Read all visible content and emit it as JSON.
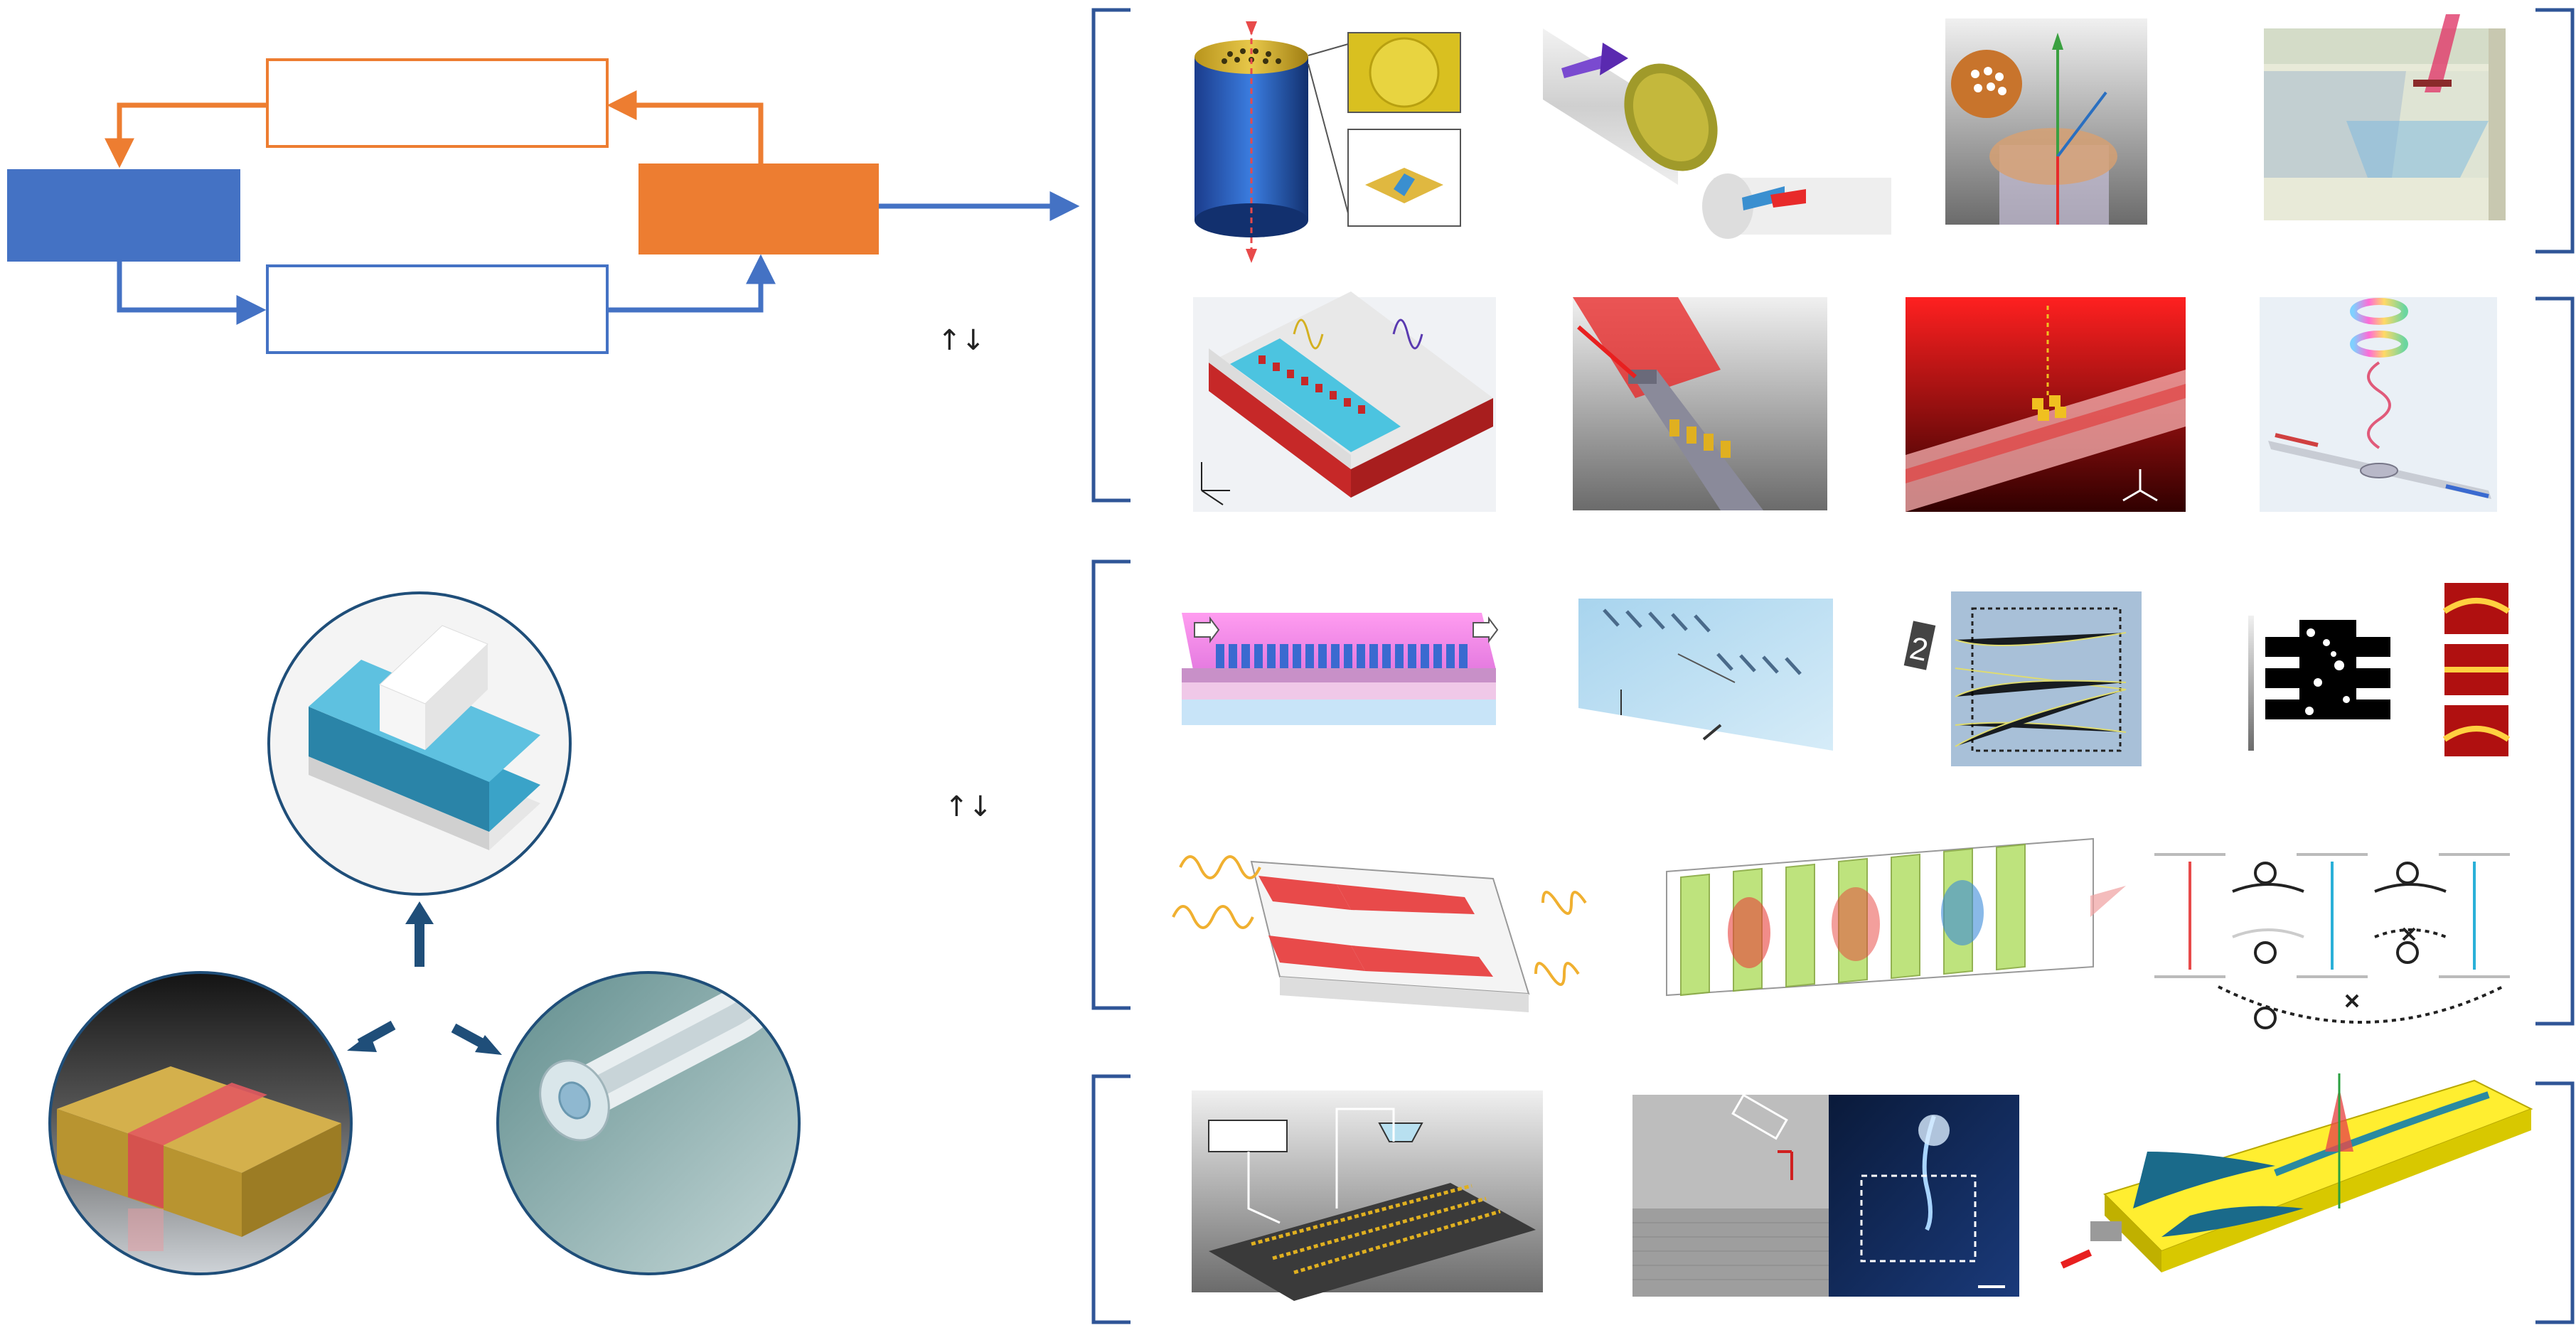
{
  "colors": {
    "blue": "#4472c4",
    "orange": "#ed7d31",
    "bracket": "#2f5597",
    "dark_arrow": "#1f4e79",
    "circle_border": "#1f4e79",
    "device_gold": "#c9a227",
    "device_red": "#e84a4a",
    "teal": "#2e94b8"
  },
  "flow": {
    "left_block": "",
    "right_block": "",
    "top_box": "",
    "bottom_box": ""
  },
  "arrows_symbol": {
    "first": "↑↓",
    "second": "↑↓"
  },
  "platforms": {
    "waveguide": {
      "icon": "rib-waveguide-icon"
    },
    "planar": {
      "icon": "planar-slab-icon"
    },
    "fiber": {
      "icon": "optical-fiber-icon"
    }
  },
  "rows": [
    {
      "name": "fiber-metasurfaces",
      "items": [
        "fiber-tip-metalens",
        "fiber-facet-metasurface",
        "fiber-hologram",
        "fiber-side-metasurface"
      ]
    },
    {
      "name": "waveguide-antennas",
      "items": [
        "waveguide-antenna-array",
        "waveguide-nanoantenna-beam",
        "waveguide-mode-converter",
        "waveguide-vortex-emitter"
      ]
    },
    {
      "name": "inverse-design",
      "items": [
        "metagrating-coupler",
        "meta-array-coupler",
        "diffractive-network",
        "inverse-designed-splitter"
      ]
    },
    {
      "name": "advanced-functions",
      "items": [
        "chirped-grating-device",
        "layered-diffractive-stack",
        "nonreciprocal-energy-levels"
      ]
    },
    {
      "name": "integrated-systems",
      "items": [
        "chip-system-setup",
        "sem-and-emission-image",
        "hybrid-horn-emitter"
      ]
    }
  ]
}
